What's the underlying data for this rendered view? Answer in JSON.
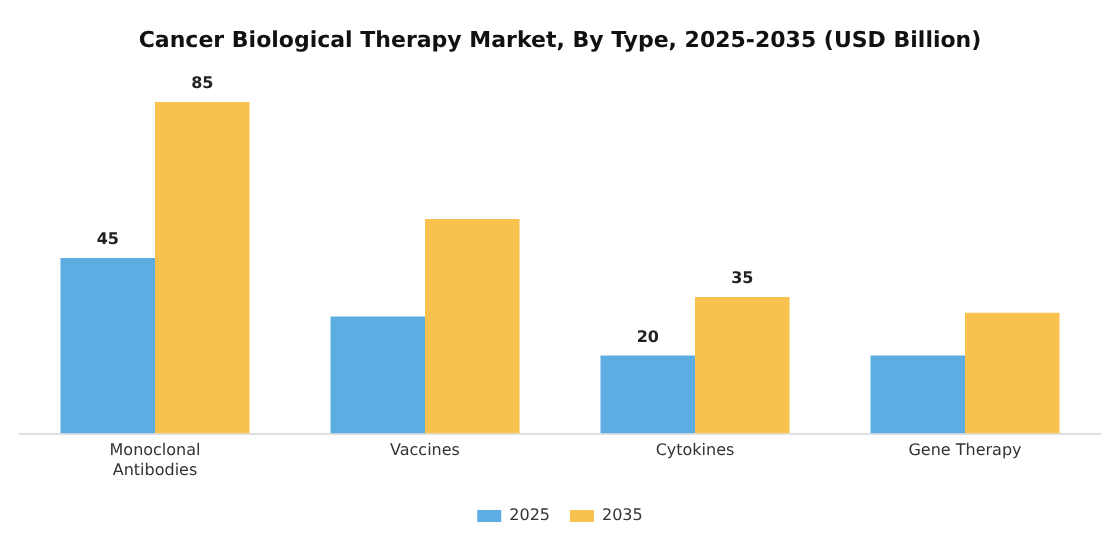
{
  "chart_data": {
    "type": "bar",
    "title": "Cancer Biological Therapy Market, By Type, 2025-2035 (USD Billion)",
    "categories": [
      [
        "Monoclonal",
        "Antibodies"
      ],
      "Vaccines",
      "Cytokines",
      "Gene Therapy"
    ],
    "series": [
      {
        "name": "2025",
        "color": "#5dade2",
        "values": [
          45,
          30,
          20,
          20
        ],
        "value_labels": [
          "45",
          null,
          "20",
          null
        ]
      },
      {
        "name": "2035",
        "color": "#f9c24e",
        "values": [
          85,
          55,
          35,
          31
        ],
        "value_labels": [
          "85",
          null,
          "35",
          null
        ]
      }
    ],
    "legend": "bottom",
    "grid": false
  }
}
